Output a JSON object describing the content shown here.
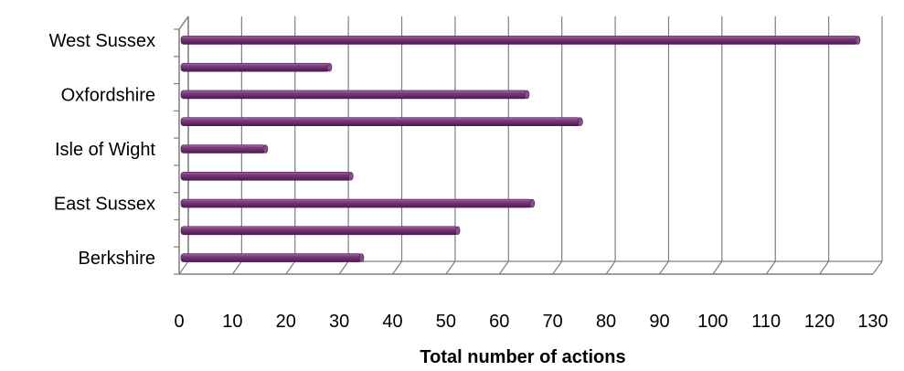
{
  "chart_data": {
    "type": "bar",
    "orientation": "horizontal",
    "style": "3d",
    "grid": true,
    "categories": [
      "West Sussex",
      "",
      "Oxfordshire",
      "",
      "Isle of Wight",
      "",
      "East Sussex",
      "",
      "Berkshire"
    ],
    "values": [
      127,
      28,
      65,
      75,
      16,
      32,
      66,
      52,
      34
    ],
    "xlabel": "Total number of actions",
    "ylabel": "",
    "xlim": [
      0,
      130
    ],
    "xticks": [
      "0",
      "10",
      "20",
      "30",
      "40",
      "50",
      "60",
      "70",
      "80",
      "90",
      "100",
      "110",
      "120",
      "130"
    ],
    "colors": {
      "bar": "#6b2a6e",
      "bar_highlight": "#9a5a9c",
      "grid": "#7f7f7f"
    }
  }
}
